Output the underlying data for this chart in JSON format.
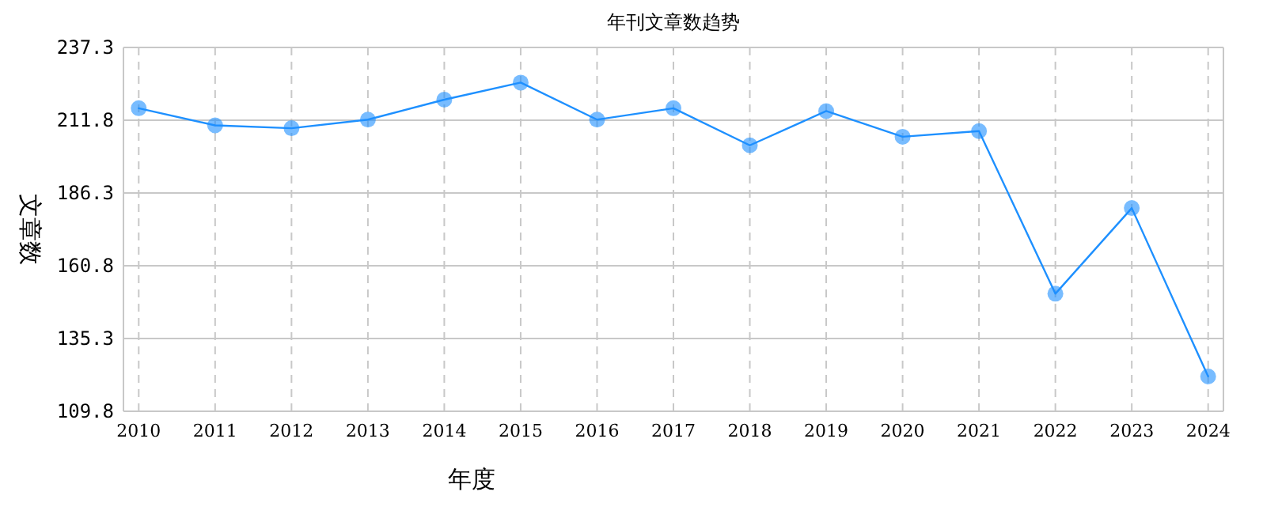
{
  "chart_data": {
    "type": "line",
    "title": "年刊文章数趋势",
    "xlabel": "年度",
    "ylabel": "文章数",
    "categories": [
      "2010",
      "2011",
      "2012",
      "2013",
      "2014",
      "2015",
      "2016",
      "2017",
      "2018",
      "2019",
      "2020",
      "2021",
      "2022",
      "2023",
      "2024"
    ],
    "series": [
      {
        "color": "#1e90ff",
        "values": [
          216,
          210,
          209,
          212,
          219,
          225,
          212,
          216,
          203,
          215,
          206,
          208,
          151,
          181,
          122
        ]
      }
    ],
    "ylim": [
      109.8,
      237.3
    ],
    "yticks": [
      109.8,
      135.3,
      160.8,
      186.3,
      211.8,
      237.3
    ],
    "grid": true,
    "marker": "circle",
    "line_style": "solid"
  }
}
